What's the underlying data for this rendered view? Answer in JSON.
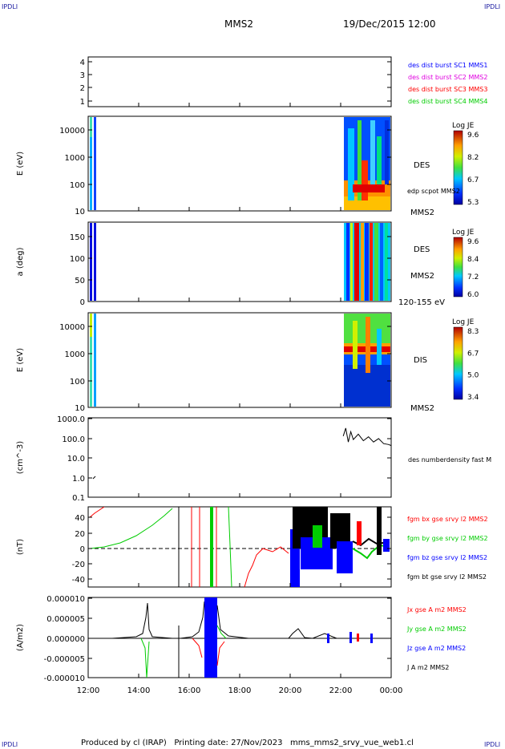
{
  "corners": {
    "top_left": "IPDLI",
    "top_right": "IPDLI",
    "bottom_left": "IPDLI",
    "bottom_right": "IPDLI"
  },
  "header": {
    "spacecraft": "MMS2",
    "datetime": "19/Dec/2015 12:00"
  },
  "footer": {
    "text": "Produced by cl (IRAP)   Printing date: 27/Nov/2023   mms_mms2_srvy_vue_web1.cl"
  },
  "x_axis": {
    "ticks": [
      "12:00",
      "14:00",
      "16:00",
      "18:00",
      "20:00",
      "22:00",
      "00:00"
    ]
  },
  "colors": {
    "blue": "#0000ff",
    "magenta": "#e000e0",
    "red": "#ff0000",
    "green": "#00cc00",
    "black": "#000000"
  },
  "chart_data": [
    {
      "type": "line",
      "panel": "burst-availability",
      "ylabel": "",
      "y_ticks": [
        "4",
        "3",
        "2",
        "1"
      ],
      "ylim": [
        0.5,
        4.5
      ],
      "series": [
        {
          "name": "des dist burst SC1 MMS1",
          "color": "#0000ff",
          "values": []
        },
        {
          "name": "des dist burst SC2 MMS2",
          "color": "#e000e0",
          "values": []
        },
        {
          "name": "des dist burst SC3 MMS3",
          "color": "#ff0000",
          "values": []
        },
        {
          "name": "des dist burst SC4 MMS4",
          "color": "#00cc00",
          "values": []
        }
      ]
    },
    {
      "type": "heatmap",
      "panel": "des-energy",
      "ylabel": "E (eV)",
      "y_ticks": [
        "10000",
        "1000",
        "100",
        "10"
      ],
      "scale": "log",
      "labels": [
        "DES",
        "edp scpot MMS2",
        "MMS2"
      ],
      "colorbar": {
        "title": "Log JE",
        "ticks": [
          "9.6",
          "8.2",
          "6.7",
          "5.3"
        ],
        "range": [
          5.3,
          9.6
        ]
      }
    },
    {
      "type": "heatmap",
      "panel": "des-pitch-angle",
      "ylabel": "a (deg)",
      "y_ticks": [
        "150",
        "100",
        "50",
        "0"
      ],
      "ylim": [
        0,
        180
      ],
      "labels": [
        "DES",
        "MMS2",
        "120-155 eV"
      ],
      "colorbar": {
        "title": "Log JE",
        "ticks": [
          "9.6",
          "8.4",
          "7.2",
          "6.0"
        ],
        "range": [
          6.0,
          9.6
        ]
      }
    },
    {
      "type": "heatmap",
      "panel": "dis-energy",
      "ylabel": "E (eV)",
      "y_ticks": [
        "10000",
        "1000",
        "100",
        "10"
      ],
      "scale": "log",
      "labels": [
        "DIS",
        "MMS2"
      ],
      "colorbar": {
        "title": "Log JE",
        "ticks": [
          "8.3",
          "6.7",
          "5.0",
          "3.4"
        ],
        "range": [
          3.4,
          8.3
        ]
      }
    },
    {
      "type": "line",
      "panel": "density",
      "ylabel": "(cm^-3)",
      "y_ticks": [
        "1000.0",
        "100.0",
        "10.0",
        "1.0",
        "0.1"
      ],
      "scale": "log",
      "ylim": [
        0.1,
        1000
      ],
      "series": [
        {
          "name": "des numberdensity fast M",
          "color": "#000000",
          "x": [
            22.1,
            22.2,
            22.3,
            22.4,
            22.5,
            22.7,
            22.9,
            23.1,
            23.3,
            23.5,
            23.7,
            23.9,
            24.0
          ],
          "values": [
            120,
            300,
            60,
            200,
            80,
            150,
            70,
            110,
            60,
            90,
            50,
            45,
            40
          ]
        }
      ]
    },
    {
      "type": "line",
      "panel": "magnetic-field",
      "ylabel": "(nT)",
      "y_ticks": [
        "40",
        "20",
        "0",
        "-20",
        "-40"
      ],
      "ylim": [
        -50,
        50
      ],
      "series": [
        {
          "name": "fgm bx gse srvy l2 MMS2",
          "color": "#ff0000"
        },
        {
          "name": "fgm by gse srvy l2 MMS2",
          "color": "#00cc00"
        },
        {
          "name": "fgm bz gse srvy l2 MMS2",
          "color": "#0000ff"
        },
        {
          "name": "fgm bt gse srvy l2 MMS2",
          "color": "#000000"
        }
      ]
    },
    {
      "type": "line",
      "panel": "current-density",
      "ylabel": "(A/m2)",
      "y_ticks": [
        "0.000010",
        "0.000005",
        "0.000000",
        "-0.000005",
        "-0.000010"
      ],
      "ylim": [
        -1e-05,
        1e-05
      ],
      "series": [
        {
          "name": "Jx gse A m2 MMS2",
          "color": "#ff0000"
        },
        {
          "name": "Jy gse A m2 MMS2",
          "color": "#00cc00"
        },
        {
          "name": "Jz gse A m2 MMS2",
          "color": "#0000ff"
        },
        {
          "name": "J A m2 MMS2",
          "color": "#000000"
        }
      ]
    }
  ]
}
